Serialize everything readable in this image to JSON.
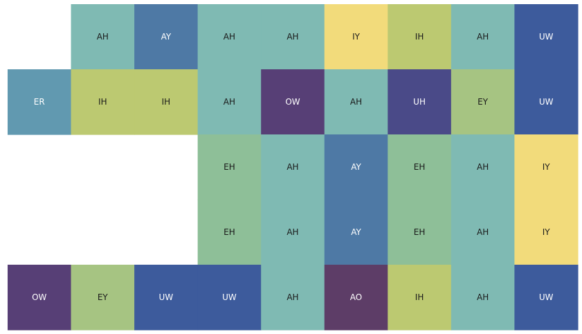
{
  "chart_data": {
    "type": "heatmap",
    "title": "",
    "xlabel": "",
    "ylabel": "",
    "rows": 5,
    "cols": 9,
    "grid": false,
    "legend": "none",
    "colors": {
      "AH": "#7fbab3",
      "AY": "#4e79a5",
      "IY": "#f2db7b",
      "IH": "#bcc971",
      "UW": "#3d5b9c",
      "ER": "#6199b0",
      "OW": "#573f76",
      "UH": "#4a4a88",
      "EY": "#a6c482",
      "EH": "#8ebf98",
      "AO": "#5d3d67"
    },
    "dark_text": [
      "AH",
      "IY",
      "IH",
      "EY",
      "EH"
    ],
    "cells": [
      [
        null,
        "AH",
        "AY",
        "AH",
        "AH",
        "IY",
        "IH",
        "AH",
        "UW"
      ],
      [
        "ER",
        "IH",
        "IH",
        "AH",
        "OW",
        "AH",
        "UH",
        "EY",
        "UW"
      ],
      [
        null,
        null,
        null,
        "EH",
        "AH",
        "AY",
        "EH",
        "AH",
        "IY"
      ],
      [
        null,
        null,
        null,
        "EH",
        "AH",
        "AY",
        "EH",
        "AH",
        "IY"
      ],
      [
        "OW",
        "EY",
        "UW",
        "UW",
        "AH",
        "AO",
        "IH",
        "AH",
        "UW"
      ]
    ]
  }
}
